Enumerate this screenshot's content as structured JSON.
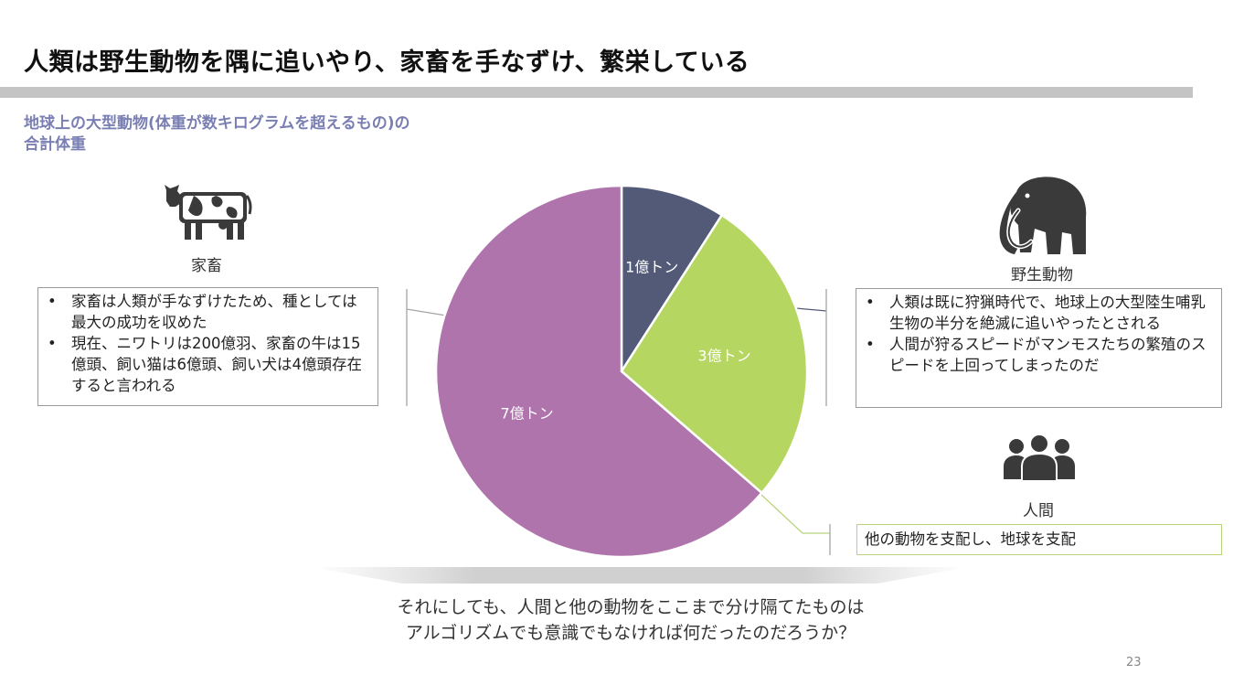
{
  "slide": {
    "title": "人類は野生動物を隅に追いやり、家畜を手なずけ、繁栄している",
    "subtitle_line1": "地球上の大型動物(体重が数キログラムを超えるもの)の",
    "subtitle_line2": "合計体重",
    "page_number": "23",
    "question_line1": "それにしても、人間と他の動物をここまで分け隔てたものは",
    "question_line2": "アルゴリズムでも意識でもなければ何だったのだろうか？"
  },
  "livestock": {
    "label": "家畜",
    "icon": "cow-icon",
    "bullets": [
      "家畜は人類が手なずけたため、種としては最大の成功を収めた",
      "現在、ニワトリは200億羽、家畜の牛は15億頭、飼い猫は6億頭、飼い犬は4億頭存在すると言われる"
    ]
  },
  "wild": {
    "label": "野生動物",
    "icon": "mammoth-icon",
    "bullets": [
      "人類は既に狩猟時代で、地球上の大型陸生哺乳生物の半分を絶滅に追いやったとされる",
      "人間が狩るスピードがマンモスたちの繁殖のスピードを上回ってしまったのだ"
    ]
  },
  "human": {
    "label": "人間",
    "icon": "people-icon",
    "note": "他の動物を支配し、地球を支配"
  },
  "chart_data": {
    "type": "pie",
    "unit": "億トン",
    "slices": [
      {
        "category": "野生動物",
        "value": 1,
        "label": "1億トン",
        "color": "#525a78"
      },
      {
        "category": "人間",
        "value": 3,
        "label": "3億トン",
        "color": "#b5d660"
      },
      {
        "category": "家畜",
        "value": 7,
        "label": "7億トン",
        "color": "#b074ad"
      }
    ]
  }
}
